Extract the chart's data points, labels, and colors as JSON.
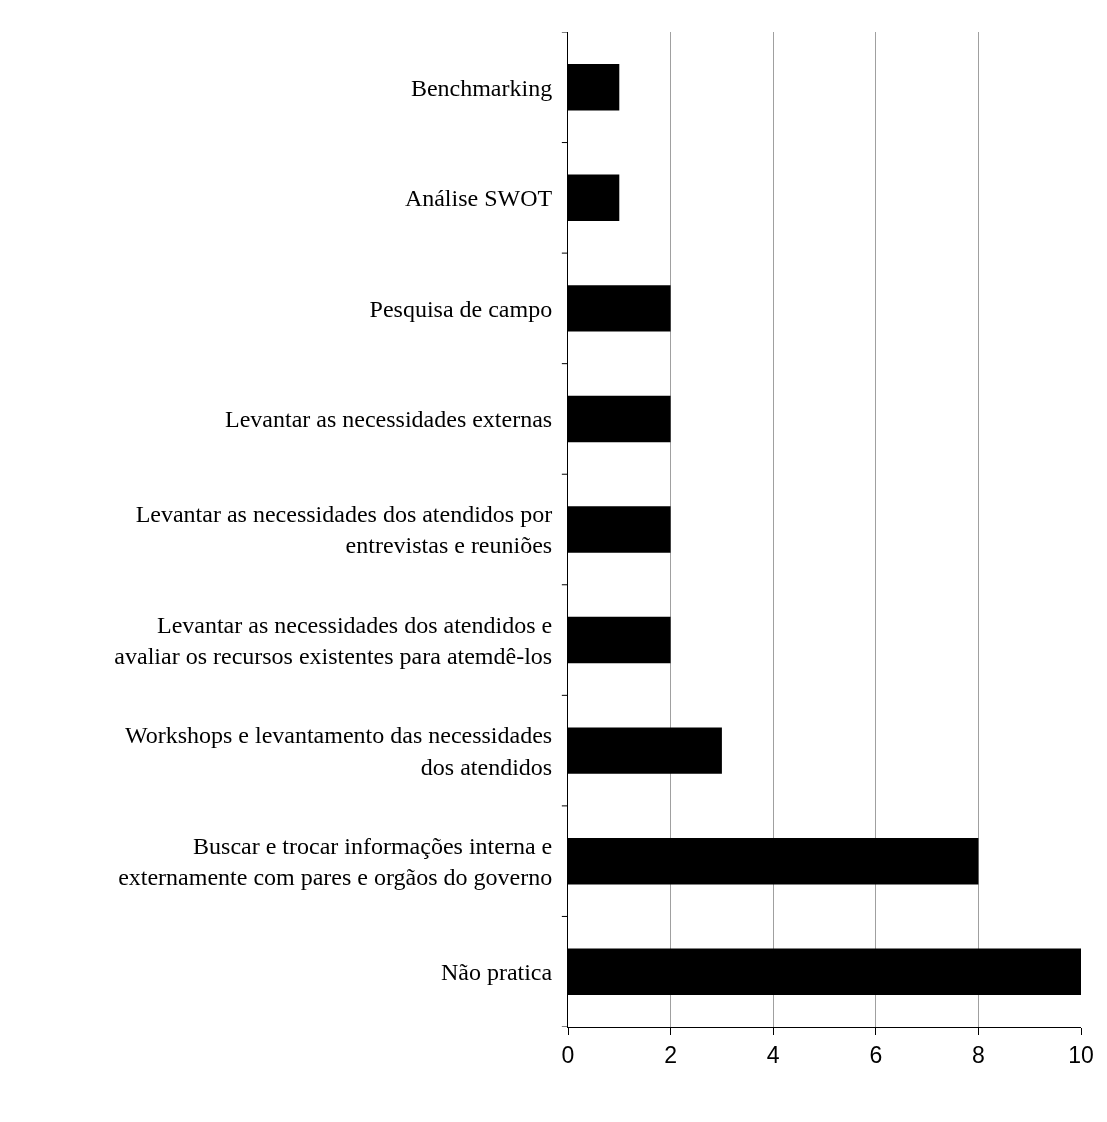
{
  "chart_data": {
    "type": "bar",
    "orientation": "horizontal",
    "categories": [
      "Benchmarking",
      "Análise SWOT",
      "Pesquisa de campo",
      "Levantar as necessidades externas",
      "Levantar as necessidades dos atendidos por\nentrevistas e reuniões",
      "Levantar as necessidades dos atendidos e\navaliar os recursos existentes para atemdê-los",
      "Workshops e levantamento das necessidades\ndos atendidos",
      "Buscar e trocar informações interna e\nexternamente com pares e orgãos do governo",
      "Não pratica"
    ],
    "values": [
      1,
      1,
      2,
      2,
      2,
      2,
      3,
      8,
      10
    ],
    "color": "#000000",
    "xlim": [
      0,
      10
    ],
    "xticks": [
      0,
      2,
      4,
      6,
      8,
      10
    ],
    "grid": "x"
  }
}
